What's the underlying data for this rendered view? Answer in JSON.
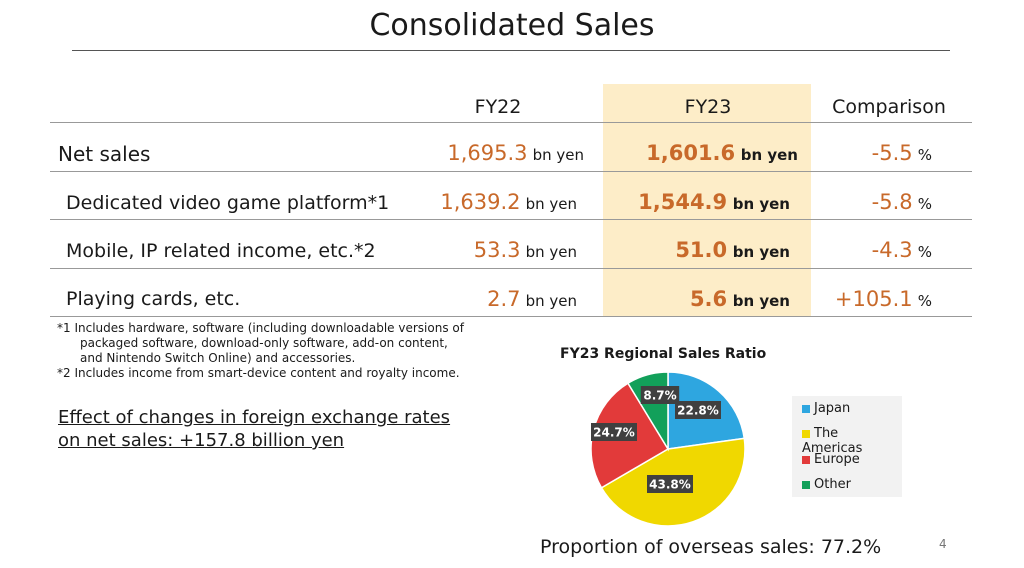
{
  "title": "Consolidated Sales",
  "headers": {
    "fy22": "FY22",
    "fy23": "FY23",
    "comparison": "Comparison"
  },
  "rows": [
    {
      "label": "Net sales",
      "fy22": "1,695.3",
      "fy23": "1,601.6",
      "comparison": "-5.5"
    },
    {
      "label": "Dedicated video game platform*1",
      "fy22": "1,639.2",
      "fy23": "1,544.9",
      "comparison": "-5.8"
    },
    {
      "label": "Mobile, IP related income, etc.*2",
      "fy22": "53.3",
      "fy23": "51.0",
      "comparison": "-4.3"
    },
    {
      "label": "Playing cards, etc.",
      "fy22": "2.7",
      "fy23": "5.6",
      "comparison": "+105.1"
    }
  ],
  "units": {
    "money": "bn yen",
    "percent": "%"
  },
  "footnotes": [
    "*1 Includes hardware, software (including downloadable versions of",
    "packaged software, download-only software, add-on content,",
    "and Nintendo Switch Online) and accessories.",
    "*2 Includes income from smart-device content and royalty income."
  ],
  "fx_note": [
    "Effect of changes in foreign exchange rates",
    "on net sales: +157.8 billion yen"
  ],
  "chart_data": {
    "type": "pie",
    "title": "FY23 Regional Sales Ratio",
    "categories": [
      "Japan",
      "The Americas",
      "Europe",
      "Other"
    ],
    "values": [
      22.8,
      43.8,
      24.7,
      8.7
    ],
    "labels": [
      "22.8%",
      "43.8%",
      "24.7%",
      "8.7%"
    ],
    "colors": [
      "#2ea6e0",
      "#f0d800",
      "#e23a3a",
      "#12a05a"
    ],
    "legend": "right"
  },
  "overseas": "Proportion of overseas sales: 77.2%",
  "page_number": "4"
}
